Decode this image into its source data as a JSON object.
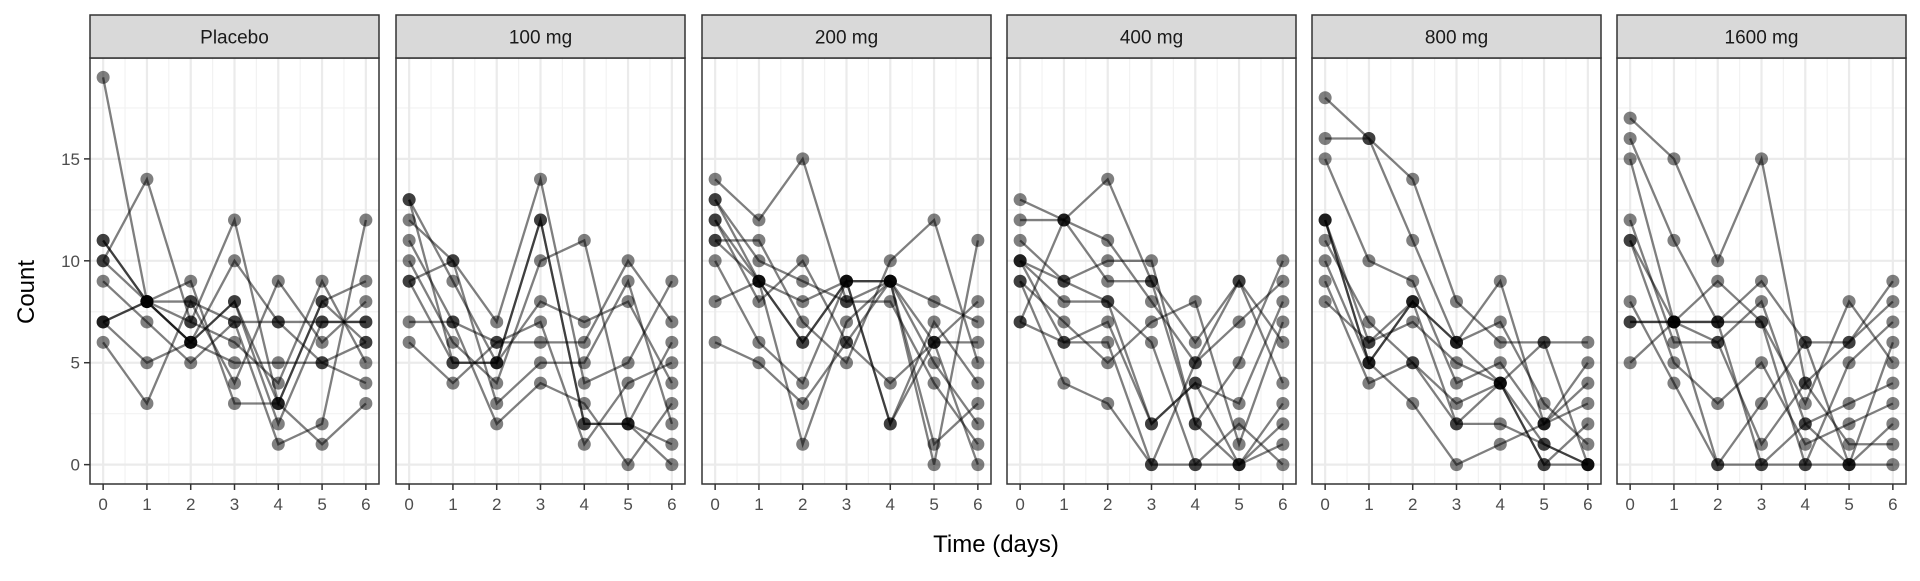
{
  "chart_data": {
    "type": "line",
    "theme": "ggplot-bw faceted spaghetti plot",
    "xlabel": "Time (days)",
    "ylabel": "Count",
    "x_ticks": [
      0,
      1,
      2,
      3,
      4,
      5,
      6
    ],
    "y_ticks": [
      0,
      5,
      10,
      15
    ],
    "xlim": [
      -0.3,
      6.3
    ],
    "ylim": [
      -0.95,
      19.95
    ],
    "grid": true,
    "line_color": "#000000",
    "line_opacity": 0.5,
    "point_opacity": 0.5,
    "panel_strip_fill": "#d9d9d9",
    "x": [
      0,
      1,
      2,
      3,
      4,
      5,
      6
    ],
    "panels": [
      {
        "label": "Placebo",
        "series": [
          {
            "values": [
              19,
              8,
              8,
              7,
              7,
              7,
              7
            ]
          },
          {
            "values": [
              11,
              8,
              6,
              5,
              5,
              5,
              4
            ]
          },
          {
            "values": [
              10,
              14,
              7,
              6,
              4,
              9,
              5
            ]
          },
          {
            "values": [
              9,
              7,
              5,
              7,
              1,
              2,
              12
            ]
          },
          {
            "values": [
              7,
              5,
              6,
              8,
              3,
              8,
              6
            ]
          },
          {
            "values": [
              6,
              3,
              8,
              4,
              9,
              6,
              8
            ]
          },
          {
            "values": [
              10,
              8,
              7,
              12,
              3,
              8,
              9
            ]
          },
          {
            "values": [
              7,
              8,
              9,
              3,
              3,
              1,
              3
            ]
          },
          {
            "values": [
              11,
              8,
              6,
              8,
              2,
              7,
              7
            ]
          },
          {
            "values": [
              7,
              8,
              6,
              10,
              7,
              5,
              6
            ]
          }
        ]
      },
      {
        "label": "100 mg",
        "series": [
          {
            "values": [
              13,
              9,
              5,
              12,
              2,
              2,
              0
            ]
          },
          {
            "values": [
              12,
              10,
              7,
              14,
              4,
              5,
              9
            ]
          },
          {
            "values": [
              11,
              7,
              6,
              6,
              6,
              10,
              7
            ]
          },
          {
            "values": [
              10,
              6,
              4,
              10,
              11,
              2,
              6
            ]
          },
          {
            "values": [
              9,
              5,
              5,
              8,
              7,
              8,
              4
            ]
          },
          {
            "values": [
              9,
              10,
              3,
              5,
              5,
              9,
              2
            ]
          },
          {
            "values": [
              7,
              7,
              2,
              4,
              3,
              0,
              3
            ]
          },
          {
            "values": [
              6,
              4,
              6,
              7,
              1,
              4,
              5
            ]
          },
          {
            "values": [
              13,
              5,
              5,
              12,
              2,
              2,
              1
            ]
          }
        ]
      },
      {
        "label": "200 mg",
        "series": [
          {
            "values": [
              14,
              12,
              15,
              8,
              9,
              8,
              7
            ]
          },
          {
            "values": [
              13,
              9,
              6,
              9,
              9,
              6,
              6
            ]
          },
          {
            "values": [
              12,
              8,
              10,
              6,
              4,
              6,
              8
            ]
          },
          {
            "values": [
              11,
              11,
              7,
              5,
              10,
              12,
              5
            ]
          },
          {
            "values": [
              10,
              6,
              4,
              9,
              2,
              7,
              4
            ]
          },
          {
            "values": [
              8,
              9,
              1,
              7,
              9,
              1,
              3
            ]
          },
          {
            "values": [
              6,
              5,
              3,
              6,
              9,
              5,
              2
            ]
          },
          {
            "values": [
              13,
              10,
              9,
              8,
              8,
              4,
              1
            ]
          },
          {
            "values": [
              12,
              9,
              8,
              9,
              9,
              0,
              11
            ]
          },
          {
            "values": [
              11,
              9,
              6,
              9,
              2,
              6,
              0
            ]
          }
        ]
      },
      {
        "label": "400 mg",
        "series": [
          {
            "values": [
              13,
              12,
              14,
              9,
              6,
              9,
              6
            ]
          },
          {
            "values": [
              12,
              12,
              11,
              8,
              5,
              7,
              9
            ]
          },
          {
            "values": [
              11,
              9,
              10,
              10,
              2,
              5,
              10
            ]
          },
          {
            "values": [
              10,
              8,
              8,
              2,
              4,
              3,
              8
            ]
          },
          {
            "values": [
              10,
              6,
              6,
              0,
              0,
              2,
              0
            ]
          },
          {
            "values": [
              9,
              7,
              5,
              7,
              8,
              1,
              7
            ]
          },
          {
            "values": [
              9,
              4,
              3,
              0,
              5,
              9,
              4
            ]
          },
          {
            "values": [
              7,
              12,
              9,
              9,
              2,
              0,
              1
            ]
          },
          {
            "values": [
              7,
              6,
              7,
              2,
              4,
              0,
              2
            ]
          },
          {
            "values": [
              10,
              9,
              8,
              6,
              0,
              0,
              3
            ]
          }
        ]
      },
      {
        "label": "800 mg",
        "series": [
          {
            "values": [
              18,
              16,
              14,
              8,
              6,
              6,
              6
            ]
          },
          {
            "values": [
              16,
              16,
              11,
              6,
              9,
              2,
              5
            ]
          },
          {
            "values": [
              15,
              10,
              9,
              4,
              5,
              2,
              4
            ]
          },
          {
            "values": [
              12,
              5,
              8,
              6,
              7,
              3,
              1
            ]
          },
          {
            "values": [
              12,
              6,
              7,
              5,
              4,
              0,
              2
            ]
          },
          {
            "values": [
              11,
              7,
              5,
              2,
              2,
              1,
              0
            ]
          },
          {
            "values": [
              10,
              5,
              3,
              0,
              1,
              2,
              3
            ]
          },
          {
            "values": [
              9,
              4,
              5,
              3,
              4,
              6,
              0
            ]
          },
          {
            "values": [
              8,
              6,
              8,
              2,
              4,
              1,
              0
            ]
          },
          {
            "values": [
              12,
              5,
              8,
              6,
              4,
              0,
              0
            ]
          }
        ]
      },
      {
        "label": "1600 mg",
        "series": [
          {
            "values": [
              17,
              15,
              10,
              15,
              4,
              6,
              9
            ]
          },
          {
            "values": [
              16,
              11,
              7,
              9,
              6,
              6,
              8
            ]
          },
          {
            "values": [
              15,
              7,
              9,
              7,
              3,
              8,
              5
            ]
          },
          {
            "values": [
              12,
              6,
              6,
              8,
              2,
              3,
              4
            ]
          },
          {
            "values": [
              11,
              5,
              3,
              5,
              1,
              2,
              3
            ]
          },
          {
            "values": [
              8,
              4,
              0,
              3,
              6,
              0,
              2
            ]
          },
          {
            "values": [
              7,
              7,
              6,
              1,
              4,
              1,
              1
            ]
          },
          {
            "values": [
              7,
              7,
              7,
              0,
              2,
              0,
              6
            ]
          },
          {
            "values": [
              5,
              7,
              0,
              0,
              0,
              5,
              7
            ]
          },
          {
            "values": [
              11,
              7,
              7,
              7,
              0,
              0,
              0
            ]
          }
        ]
      }
    ]
  }
}
